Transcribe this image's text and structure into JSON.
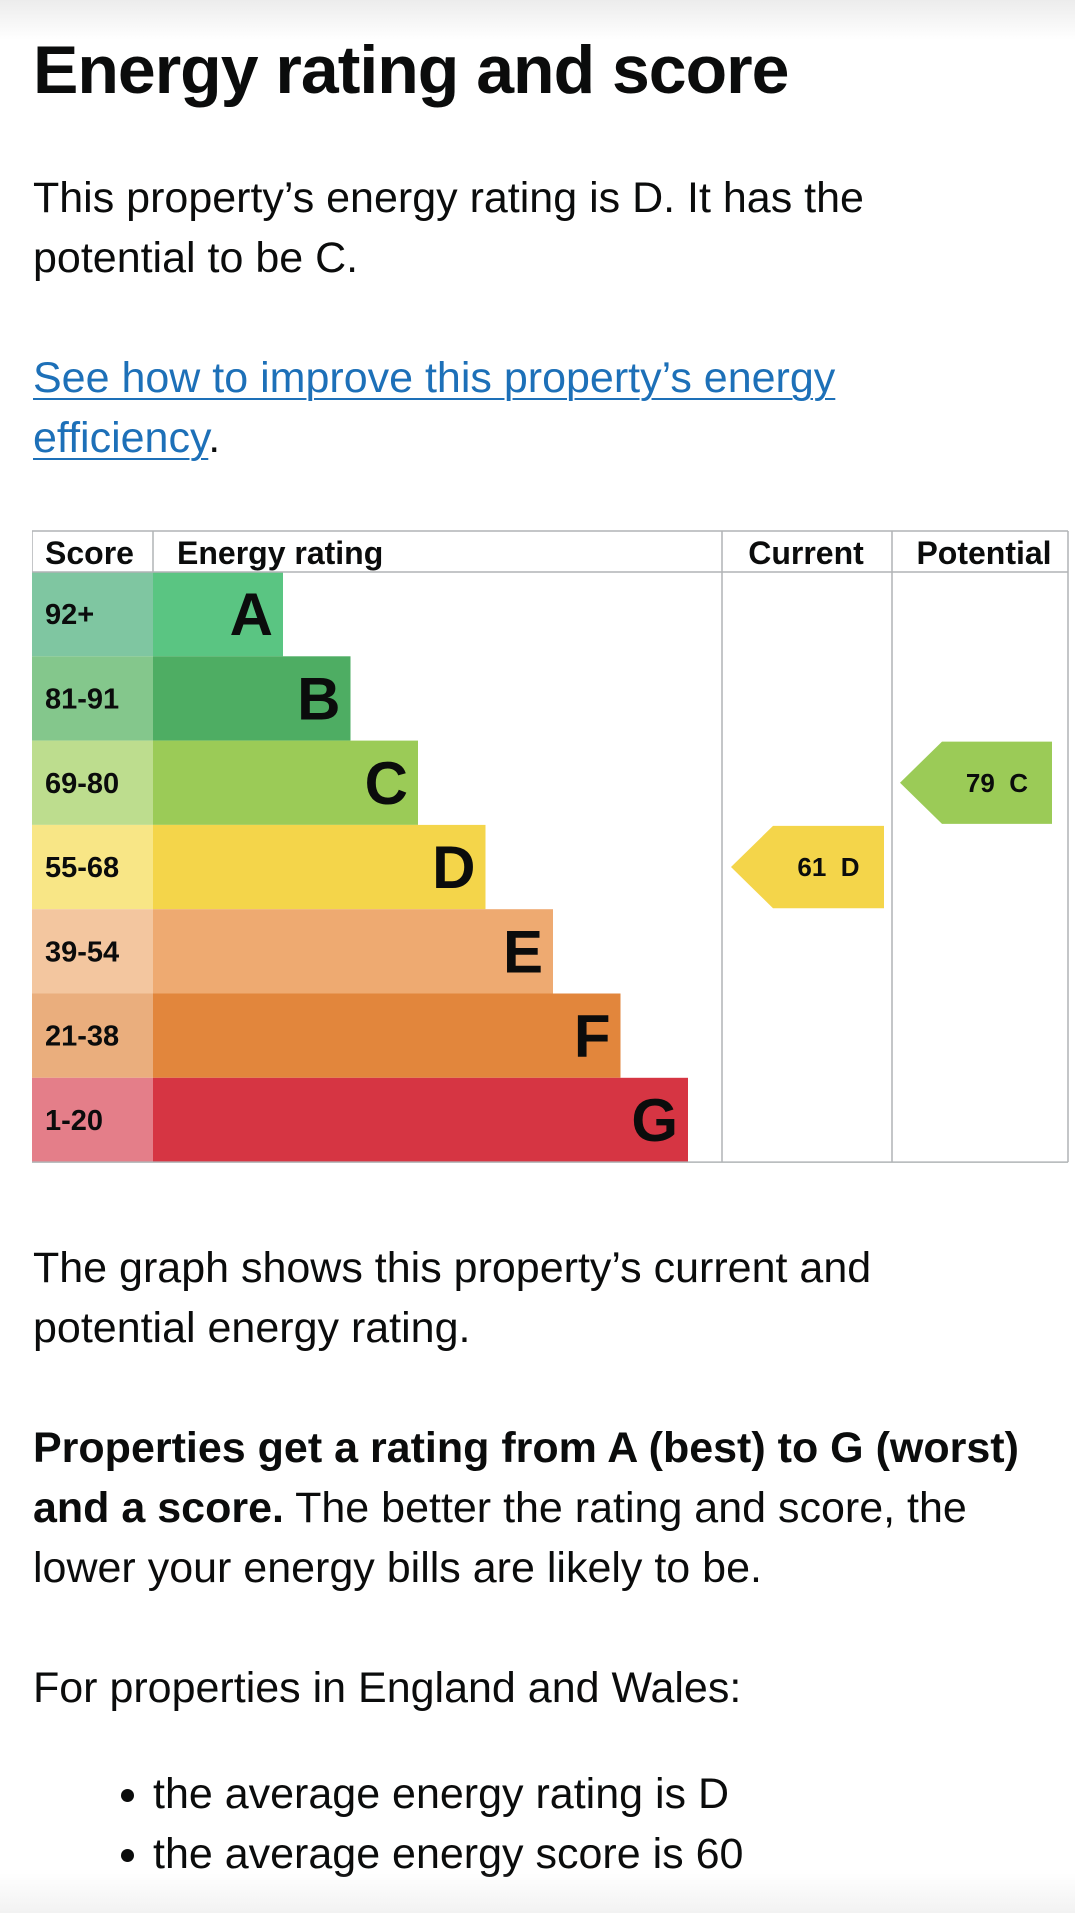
{
  "title": "Energy rating and score",
  "intro": "This property’s energy rating is D. It has the potential to be C.",
  "improve_link": {
    "text": "See how to improve this property’s energy efficiency",
    "suffix": "."
  },
  "graph": {
    "headers": {
      "score": "Score",
      "rating": "Energy rating",
      "current": "Current",
      "potential": "Potential"
    },
    "bands": [
      {
        "letter": "A",
        "range": "92+",
        "color": "#5ac582",
        "score_color": "#7fc6a1"
      },
      {
        "letter": "B",
        "range": "81-91",
        "color": "#4ead63",
        "score_color": "#84c78c"
      },
      {
        "letter": "C",
        "range": "69-80",
        "color": "#9bcb57",
        "score_color": "#bddd8e"
      },
      {
        "letter": "D",
        "range": "55-68",
        "color": "#f4d54a",
        "score_color": "#f8e686"
      },
      {
        "letter": "E",
        "range": "39-54",
        "color": "#eeaa71",
        "score_color": "#f3c69f"
      },
      {
        "letter": "F",
        "range": "21-38",
        "color": "#e2863c",
        "score_color": "#eaae7d"
      },
      {
        "letter": "G",
        "range": "1-20",
        "color": "#d63543",
        "score_color": "#e47e89"
      }
    ],
    "current": {
      "label": "61  D",
      "score": 61,
      "rating": "D",
      "color": "#f4d54a"
    },
    "potential": {
      "label": "79  C",
      "score": 79,
      "rating": "C",
      "color": "#9bcb57"
    }
  },
  "graph_description": "The graph shows this property’s current and potential energy rating.",
  "ratings_explainer": {
    "bold": "Properties get a rating from A (best) to G (worst) and a score.",
    "rest": " The better the rating and score, the lower your energy bills are likely to be."
  },
  "region_intro": "For properties in England and Wales:",
  "averages": [
    "the average energy rating is D",
    "the average energy score is 60"
  ]
}
